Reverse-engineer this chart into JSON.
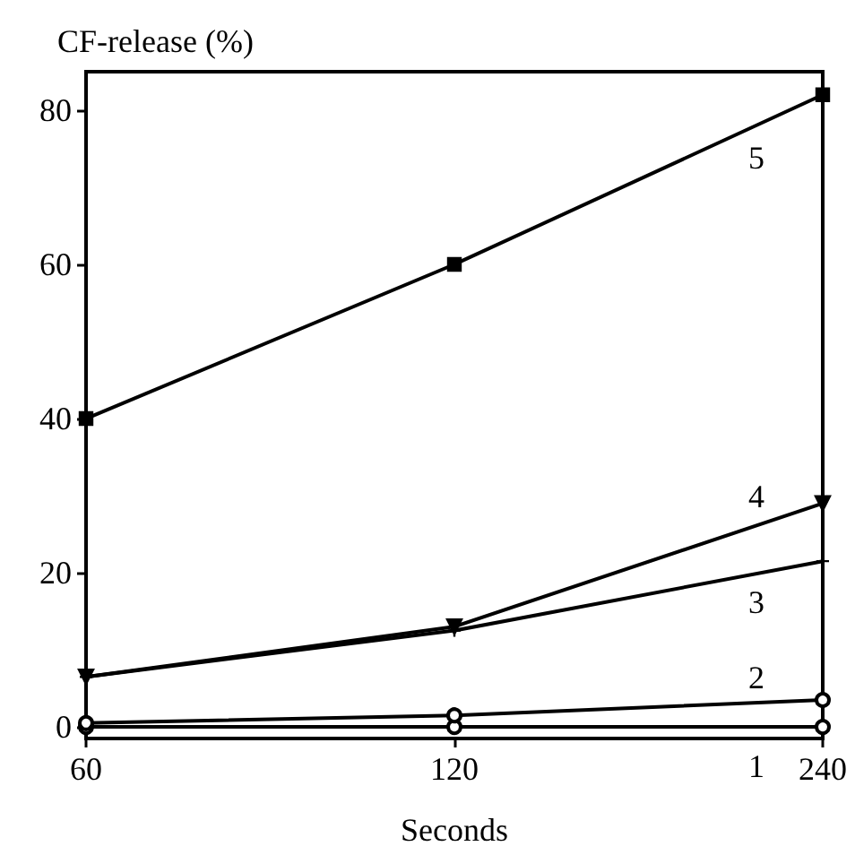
{
  "chart_data": {
    "type": "line",
    "xlabel": "Seconds",
    "ylabel": "CF-release (%)",
    "log": "x",
    "x": [
      60,
      120,
      240
    ],
    "xlim": [
      60,
      240
    ],
    "xticks": [
      60,
      120,
      240
    ],
    "ylim": [
      -1.5,
      85
    ],
    "yticks": [
      0,
      20,
      40,
      60,
      80
    ],
    "grid": false,
    "legend": false,
    "series": [
      {
        "name": "1",
        "color": "#000000",
        "marker": "circle",
        "values": [
          0,
          0,
          0
        ]
      },
      {
        "name": "2",
        "color": "#000000",
        "marker": "circle",
        "values": [
          0.5,
          1.5,
          3.5
        ]
      },
      {
        "name": "3",
        "color": "#000000",
        "marker": "cross",
        "values": [
          6.5,
          12.5,
          21.5
        ]
      },
      {
        "name": "4",
        "color": "#000000",
        "marker": "triangle",
        "values": [
          6.5,
          13,
          29
        ]
      },
      {
        "name": "5",
        "color": "#000000",
        "marker": "square",
        "values": [
          40,
          60,
          82
        ]
      }
    ]
  }
}
